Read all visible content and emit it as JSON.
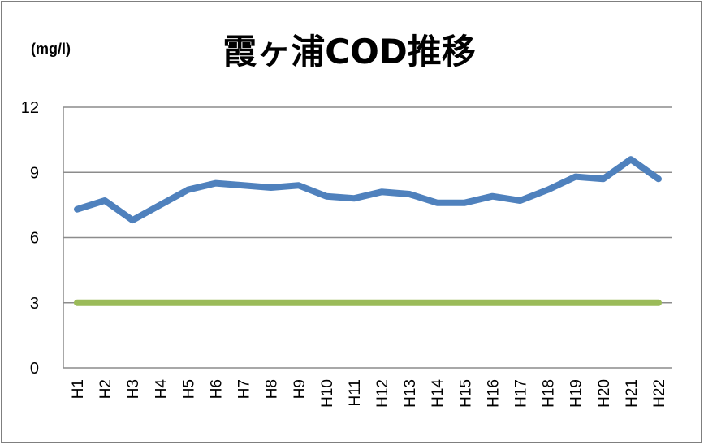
{
  "chart_data": {
    "type": "line",
    "title": "霞ヶ浦COD推移",
    "ylabel": "(mg/l)",
    "xlabel": "",
    "ylim": [
      0,
      12
    ],
    "yticks": [
      "0",
      "3",
      "6",
      "9",
      "12"
    ],
    "grid": true,
    "categories": [
      "H1",
      "H2",
      "H3",
      "H4",
      "H5",
      "H6",
      "H7",
      "H8",
      "H9",
      "H10",
      "H11",
      "H12",
      "H13",
      "H14",
      "H15",
      "H16",
      "H17",
      "H18",
      "H19",
      "H20",
      "H21",
      "H22"
    ],
    "series": [
      {
        "values": [
          7.3,
          7.7,
          6.8,
          7.5,
          8.2,
          8.5,
          8.4,
          8.3,
          8.4,
          7.9,
          7.8,
          8.1,
          8.0,
          7.6,
          7.6,
          7.9,
          7.7,
          8.2,
          8.8,
          8.7,
          9.6,
          8.7
        ],
        "color": "#4f81bd"
      },
      {
        "values": [
          3,
          3,
          3,
          3,
          3,
          3,
          3,
          3,
          3,
          3,
          3,
          3,
          3,
          3,
          3,
          3,
          3,
          3,
          3,
          3,
          3,
          3
        ],
        "color": "#9bbb59"
      }
    ]
  }
}
